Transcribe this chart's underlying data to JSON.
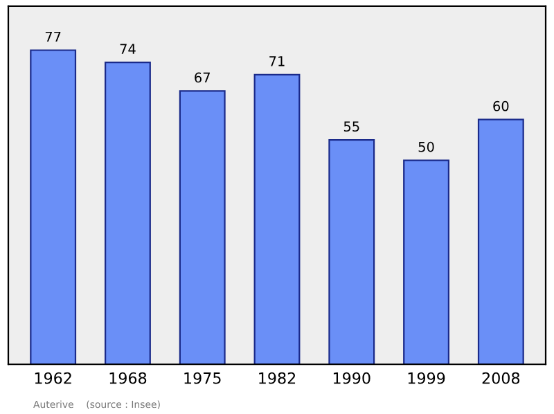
{
  "chart_data": {
    "type": "bar",
    "categories": [
      "1962",
      "1968",
      "1975",
      "1982",
      "1990",
      "1999",
      "2008"
    ],
    "values": [
      77,
      74,
      67,
      71,
      55,
      50,
      60
    ],
    "color": "#6a8ff7",
    "data_labels": true,
    "grid": false,
    "legend": false,
    "annotations": [
      "Auterive    (source : Insee)"
    ]
  }
}
